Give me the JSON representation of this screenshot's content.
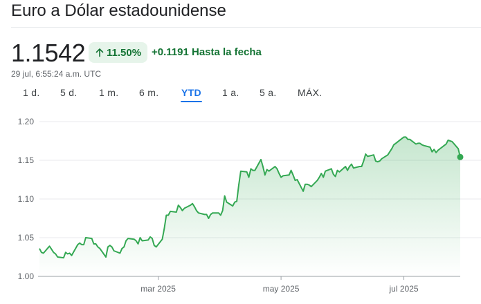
{
  "header": {
    "title": "Euro a Dólar estadounidense",
    "price": "1.1542",
    "change_pct": "11.50%",
    "change_abs": "+0.1191",
    "change_period": "Hasta la fecha",
    "timestamp": "29 jul, 6:55:24 a.m. UTC",
    "change_icon": "arrow-up-icon"
  },
  "tabs": [
    {
      "label": "1 d."
    },
    {
      "label": "5 d."
    },
    {
      "label": "1 m."
    },
    {
      "label": "6 m."
    },
    {
      "label": "YTD"
    },
    {
      "label": "1 a."
    },
    {
      "label": "5 a."
    },
    {
      "label": "MÁX."
    }
  ],
  "active_tab": "YTD",
  "colors": {
    "positive": "#137333",
    "line": "#34a853",
    "badge_bg": "#e6f4ea",
    "active_tab": "#1a73e8"
  },
  "chart_data": {
    "type": "area",
    "ylim": [
      1.0,
      1.2
    ],
    "y_ticks": [
      "1.20",
      "1.15",
      "1.10",
      "1.05",
      "1.00"
    ],
    "x_ticks": [
      "mar 2025",
      "may 2025",
      "jul 2025"
    ],
    "x_tick_dates": [
      "2025-03-01",
      "2025-05-01",
      "2025-07-01"
    ],
    "grid": true,
    "series": [
      {
        "values": [
          [
            "2025-01-01",
            1.036
          ],
          [
            "2025-01-02",
            1.031
          ],
          [
            "2025-01-03",
            1.03
          ],
          [
            "2025-01-06",
            1.039
          ],
          [
            "2025-01-07",
            1.035
          ],
          [
            "2025-01-08",
            1.031
          ],
          [
            "2025-01-09",
            1.029
          ],
          [
            "2025-01-10",
            1.025
          ],
          [
            "2025-01-13",
            1.024
          ],
          [
            "2025-01-14",
            1.031
          ],
          [
            "2025-01-15",
            1.029
          ],
          [
            "2025-01-16",
            1.03
          ],
          [
            "2025-01-17",
            1.027
          ],
          [
            "2025-01-20",
            1.041
          ],
          [
            "2025-01-21",
            1.043
          ],
          [
            "2025-01-22",
            1.041
          ],
          [
            "2025-01-23",
            1.041
          ],
          [
            "2025-01-24",
            1.05
          ],
          [
            "2025-01-27",
            1.049
          ],
          [
            "2025-01-28",
            1.042
          ],
          [
            "2025-01-29",
            1.042
          ],
          [
            "2025-01-30",
            1.038
          ],
          [
            "2025-01-31",
            1.036
          ],
          [
            "2025-02-03",
            1.025
          ],
          [
            "2025-02-04",
            1.038
          ],
          [
            "2025-02-05",
            1.04
          ],
          [
            "2025-02-06",
            1.038
          ],
          [
            "2025-02-07",
            1.033
          ],
          [
            "2025-02-10",
            1.03
          ],
          [
            "2025-02-11",
            1.036
          ],
          [
            "2025-02-12",
            1.038
          ],
          [
            "2025-02-13",
            1.046
          ],
          [
            "2025-02-14",
            1.049
          ],
          [
            "2025-02-17",
            1.048
          ],
          [
            "2025-02-18",
            1.046
          ],
          [
            "2025-02-19",
            1.042
          ],
          [
            "2025-02-20",
            1.05
          ],
          [
            "2025-02-21",
            1.046
          ],
          [
            "2025-02-24",
            1.047
          ],
          [
            "2025-02-25",
            1.051
          ],
          [
            "2025-02-26",
            1.049
          ],
          [
            "2025-02-27",
            1.04
          ],
          [
            "2025-02-28",
            1.038
          ],
          [
            "2025-03-03",
            1.048
          ],
          [
            "2025-03-04",
            1.062
          ],
          [
            "2025-03-05",
            1.079
          ],
          [
            "2025-03-06",
            1.079
          ],
          [
            "2025-03-07",
            1.084
          ],
          [
            "2025-03-10",
            1.083
          ],
          [
            "2025-03-11",
            1.092
          ],
          [
            "2025-03-12",
            1.089
          ],
          [
            "2025-03-13",
            1.085
          ],
          [
            "2025-03-14",
            1.088
          ],
          [
            "2025-03-17",
            1.092
          ],
          [
            "2025-03-18",
            1.094
          ],
          [
            "2025-03-19",
            1.09
          ],
          [
            "2025-03-20",
            1.085
          ],
          [
            "2025-03-21",
            1.082
          ],
          [
            "2025-03-24",
            1.08
          ],
          [
            "2025-03-25",
            1.08
          ],
          [
            "2025-03-26",
            1.075
          ],
          [
            "2025-03-27",
            1.08
          ],
          [
            "2025-03-28",
            1.082
          ],
          [
            "2025-03-31",
            1.082
          ],
          [
            "2025-04-01",
            1.079
          ],
          [
            "2025-04-02",
            1.085
          ],
          [
            "2025-04-03",
            1.104
          ],
          [
            "2025-04-04",
            1.096
          ],
          [
            "2025-04-07",
            1.091
          ],
          [
            "2025-04-08",
            1.096
          ],
          [
            "2025-04-09",
            1.097
          ],
          [
            "2025-04-10",
            1.118
          ],
          [
            "2025-04-11",
            1.136
          ],
          [
            "2025-04-14",
            1.135
          ],
          [
            "2025-04-15",
            1.128
          ],
          [
            "2025-04-16",
            1.139
          ],
          [
            "2025-04-17",
            1.137
          ],
          [
            "2025-04-18",
            1.137
          ],
          [
            "2025-04-21",
            1.151
          ],
          [
            "2025-04-22",
            1.142
          ],
          [
            "2025-04-23",
            1.131
          ],
          [
            "2025-04-24",
            1.138
          ],
          [
            "2025-04-25",
            1.136
          ],
          [
            "2025-04-28",
            1.142
          ],
          [
            "2025-04-29",
            1.139
          ],
          [
            "2025-04-30",
            1.133
          ],
          [
            "2025-05-01",
            1.128
          ],
          [
            "2025-05-02",
            1.13
          ],
          [
            "2025-05-05",
            1.131
          ],
          [
            "2025-05-06",
            1.137
          ],
          [
            "2025-05-07",
            1.131
          ],
          [
            "2025-05-08",
            1.124
          ],
          [
            "2025-05-09",
            1.125
          ],
          [
            "2025-05-12",
            1.11
          ],
          [
            "2025-05-13",
            1.119
          ],
          [
            "2025-05-14",
            1.119
          ],
          [
            "2025-05-15",
            1.118
          ],
          [
            "2025-05-16",
            1.116
          ],
          [
            "2025-05-19",
            1.124
          ],
          [
            "2025-05-20",
            1.128
          ],
          [
            "2025-05-21",
            1.133
          ],
          [
            "2025-05-22",
            1.128
          ],
          [
            "2025-05-23",
            1.136
          ],
          [
            "2025-05-26",
            1.139
          ],
          [
            "2025-05-27",
            1.132
          ],
          [
            "2025-05-28",
            1.129
          ],
          [
            "2025-05-29",
            1.137
          ],
          [
            "2025-05-30",
            1.135
          ],
          [
            "2025-06-02",
            1.142
          ],
          [
            "2025-06-03",
            1.137
          ],
          [
            "2025-06-04",
            1.142
          ],
          [
            "2025-06-05",
            1.145
          ],
          [
            "2025-06-06",
            1.14
          ],
          [
            "2025-06-09",
            1.142
          ],
          [
            "2025-06-10",
            1.142
          ],
          [
            "2025-06-11",
            1.149
          ],
          [
            "2025-06-12",
            1.158
          ],
          [
            "2025-06-13",
            1.155
          ],
          [
            "2025-06-16",
            1.157
          ],
          [
            "2025-06-17",
            1.149
          ],
          [
            "2025-06-18",
            1.148
          ],
          [
            "2025-06-19",
            1.149
          ],
          [
            "2025-06-20",
            1.152
          ],
          [
            "2025-06-23",
            1.157
          ],
          [
            "2025-06-24",
            1.161
          ],
          [
            "2025-06-25",
            1.165
          ],
          [
            "2025-06-26",
            1.17
          ],
          [
            "2025-06-27",
            1.172
          ],
          [
            "2025-06-30",
            1.178
          ],
          [
            "2025-07-01",
            1.18
          ],
          [
            "2025-07-02",
            1.18
          ],
          [
            "2025-07-03",
            1.177
          ],
          [
            "2025-07-04",
            1.177
          ],
          [
            "2025-07-07",
            1.171
          ],
          [
            "2025-07-08",
            1.172
          ],
          [
            "2025-07-09",
            1.172
          ],
          [
            "2025-07-10",
            1.17
          ],
          [
            "2025-07-11",
            1.169
          ],
          [
            "2025-07-14",
            1.167
          ],
          [
            "2025-07-15",
            1.161
          ],
          [
            "2025-07-16",
            1.164
          ],
          [
            "2025-07-17",
            1.16
          ],
          [
            "2025-07-18",
            1.163
          ],
          [
            "2025-07-21",
            1.169
          ],
          [
            "2025-07-22",
            1.171
          ],
          [
            "2025-07-23",
            1.176
          ],
          [
            "2025-07-24",
            1.175
          ],
          [
            "2025-07-25",
            1.174
          ],
          [
            "2025-07-28",
            1.165
          ],
          [
            "2025-07-29",
            1.1542
          ]
        ]
      }
    ]
  }
}
